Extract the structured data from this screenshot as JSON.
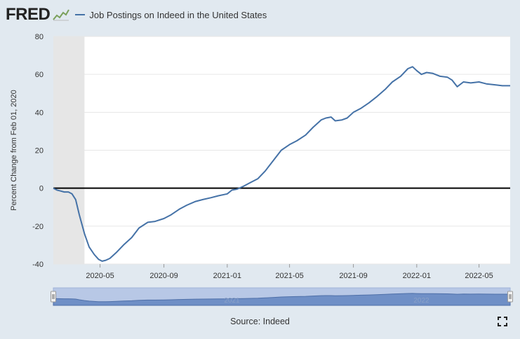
{
  "header": {
    "logo_text": "FRED",
    "logo_icon": "fred-sparkline-icon",
    "legend_label": "Job Postings on Indeed in the United States"
  },
  "footer": {
    "source": "Source: Indeed",
    "fullscreen_icon": "fullscreen-icon"
  },
  "navigator": {
    "labels": [
      "2021",
      "2022"
    ]
  },
  "colors": {
    "series": "#4572a7",
    "recession": "#e6e6e6",
    "background": "#e1e9f0",
    "plot": "#ffffff",
    "zero_line": "#000000",
    "navigator_fill": "#6f8fc6"
  },
  "chart_data": {
    "type": "line",
    "title": "",
    "xlabel": "",
    "ylabel": "Percent Change from Feb 01, 2020",
    "ylim": [
      -40,
      80
    ],
    "yticks": [
      -40,
      -20,
      0,
      20,
      40,
      60,
      80
    ],
    "xlim": [
      "2020-02-01",
      "2022-06-30"
    ],
    "xticks": [
      {
        "date": "2020-05-01",
        "label": "2020-05"
      },
      {
        "date": "2020-09-01",
        "label": "2020-09"
      },
      {
        "date": "2021-01-01",
        "label": "2021-01"
      },
      {
        "date": "2021-05-01",
        "label": "2021-05"
      },
      {
        "date": "2021-09-01",
        "label": "2021-09"
      },
      {
        "date": "2022-01-01",
        "label": "2022-01"
      },
      {
        "date": "2022-05-01",
        "label": "2022-05"
      }
    ],
    "grid": true,
    "legend_position": "top-left",
    "recession": {
      "start": "2020-02-01",
      "end": "2020-04-01"
    },
    "series": [
      {
        "name": "Job Postings on Indeed in the United States",
        "points": [
          [
            "2020-02-01",
            0
          ],
          [
            "2020-02-08",
            -1
          ],
          [
            "2020-02-15",
            -1.5
          ],
          [
            "2020-02-22",
            -2
          ],
          [
            "2020-03-01",
            -2
          ],
          [
            "2020-03-08",
            -3
          ],
          [
            "2020-03-15",
            -6
          ],
          [
            "2020-03-22",
            -14
          ],
          [
            "2020-04-01",
            -24
          ],
          [
            "2020-04-10",
            -31
          ],
          [
            "2020-04-20",
            -35
          ],
          [
            "2020-04-28",
            -37.5
          ],
          [
            "2020-05-05",
            -38.5
          ],
          [
            "2020-05-12",
            -38
          ],
          [
            "2020-05-20",
            -37
          ],
          [
            "2020-06-01",
            -34
          ],
          [
            "2020-06-15",
            -30
          ],
          [
            "2020-07-01",
            -26
          ],
          [
            "2020-07-15",
            -21
          ],
          [
            "2020-08-01",
            -18
          ],
          [
            "2020-08-15",
            -17.5
          ],
          [
            "2020-09-01",
            -16
          ],
          [
            "2020-09-15",
            -14
          ],
          [
            "2020-10-01",
            -11
          ],
          [
            "2020-10-15",
            -9
          ],
          [
            "2020-11-01",
            -7
          ],
          [
            "2020-11-15",
            -6
          ],
          [
            "2020-12-01",
            -5
          ],
          [
            "2020-12-15",
            -4
          ],
          [
            "2021-01-01",
            -3
          ],
          [
            "2021-01-10",
            -1
          ],
          [
            "2021-01-20",
            -0.5
          ],
          [
            "2021-02-01",
            1
          ],
          [
            "2021-02-15",
            3
          ],
          [
            "2021-03-01",
            5
          ],
          [
            "2021-03-15",
            9
          ],
          [
            "2021-04-01",
            15
          ],
          [
            "2021-04-15",
            20
          ],
          [
            "2021-05-01",
            23
          ],
          [
            "2021-05-15",
            25
          ],
          [
            "2021-06-01",
            28
          ],
          [
            "2021-06-15",
            32
          ],
          [
            "2021-07-01",
            36
          ],
          [
            "2021-07-10",
            37
          ],
          [
            "2021-07-20",
            37.5
          ],
          [
            "2021-07-28",
            35.5
          ],
          [
            "2021-08-10",
            36
          ],
          [
            "2021-08-20",
            37
          ],
          [
            "2021-09-01",
            40
          ],
          [
            "2021-09-15",
            42
          ],
          [
            "2021-10-01",
            45
          ],
          [
            "2021-10-15",
            48
          ],
          [
            "2021-11-01",
            52
          ],
          [
            "2021-11-15",
            56
          ],
          [
            "2021-12-01",
            59
          ],
          [
            "2021-12-15",
            63
          ],
          [
            "2021-12-24",
            64
          ],
          [
            "2022-01-01",
            62
          ],
          [
            "2022-01-10",
            60
          ],
          [
            "2022-01-20",
            61
          ],
          [
            "2022-02-01",
            60.5
          ],
          [
            "2022-02-15",
            59
          ],
          [
            "2022-03-01",
            58.5
          ],
          [
            "2022-03-10",
            57
          ],
          [
            "2022-03-20",
            53.5
          ],
          [
            "2022-04-01",
            56
          ],
          [
            "2022-04-15",
            55.5
          ],
          [
            "2022-05-01",
            56
          ],
          [
            "2022-05-15",
            55
          ],
          [
            "2022-06-01",
            54.5
          ],
          [
            "2022-06-15",
            54
          ],
          [
            "2022-06-30",
            54
          ]
        ]
      }
    ]
  }
}
